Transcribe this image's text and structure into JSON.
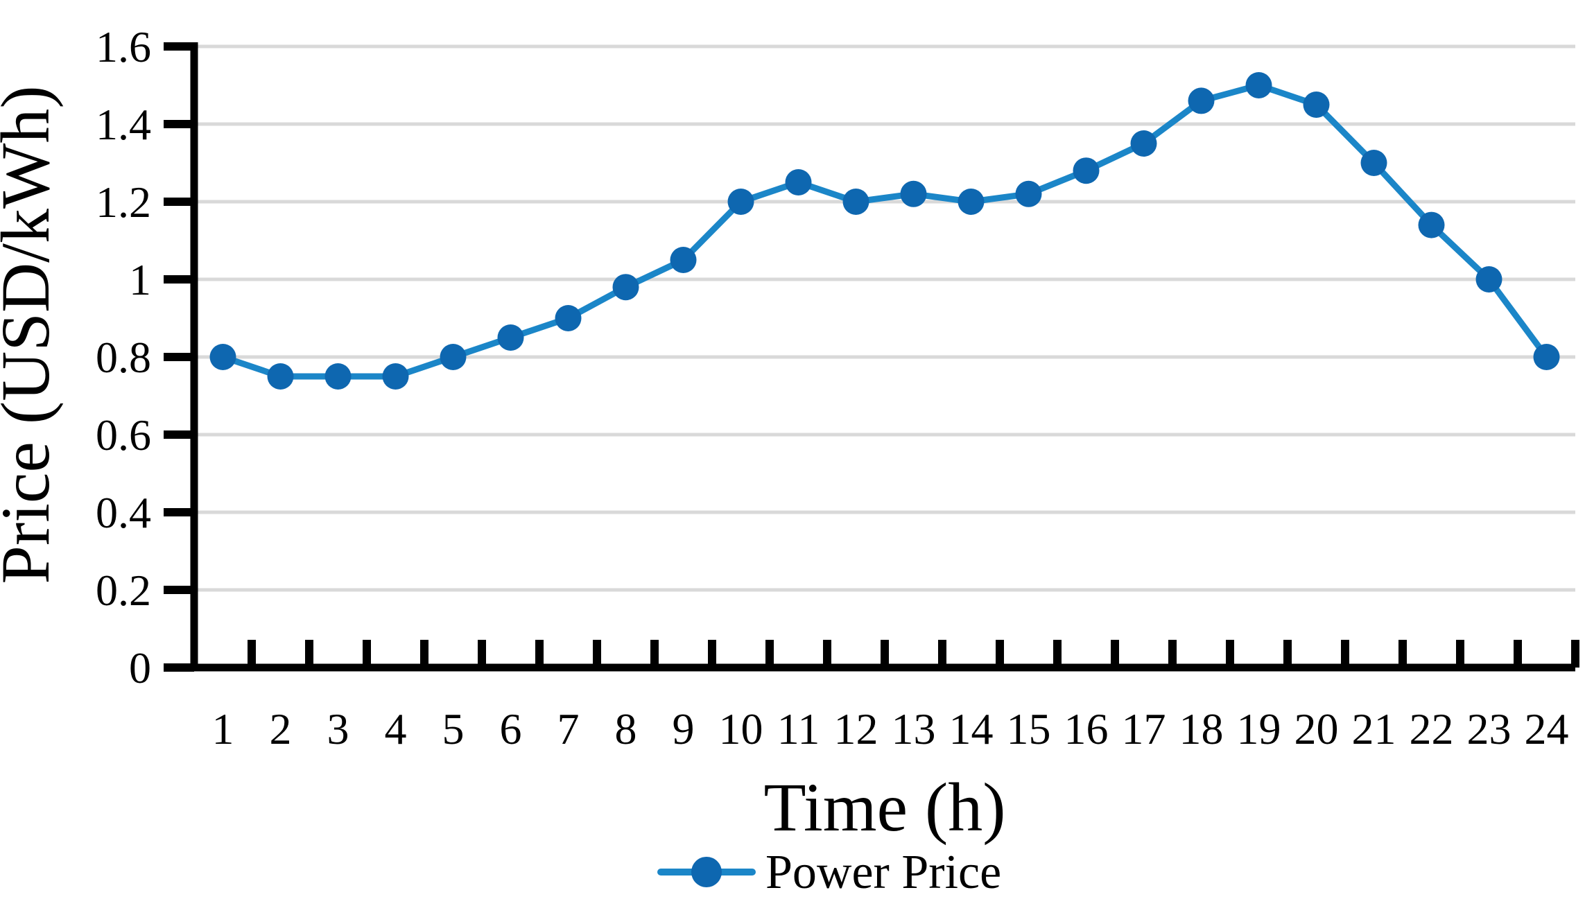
{
  "chart_data": {
    "type": "line",
    "title": "",
    "xlabel": "Time (h)",
    "ylabel": "Price (USD/kWh)",
    "categories": [
      "1",
      "2",
      "3",
      "4",
      "5",
      "6",
      "7",
      "8",
      "9",
      "10",
      "11",
      "12",
      "13",
      "14",
      "15",
      "16",
      "17",
      "18",
      "19",
      "20",
      "21",
      "22",
      "23",
      "24"
    ],
    "series": [
      {
        "name": "Power Price",
        "values": [
          0.8,
          0.75,
          0.75,
          0.75,
          0.8,
          0.85,
          0.9,
          0.98,
          1.05,
          1.2,
          1.25,
          1.2,
          1.22,
          1.2,
          1.22,
          1.28,
          1.35,
          1.46,
          1.5,
          1.45,
          1.3,
          1.14,
          1.0,
          0.8
        ]
      }
    ],
    "ylim": [
      0,
      1.6
    ],
    "yticks": [
      0,
      0.2,
      0.4,
      0.6,
      0.8,
      1.0,
      1.2,
      1.4,
      1.6
    ],
    "ytick_labels": [
      "0",
      "0.2",
      "0.4",
      "0.6",
      "0.8",
      "1",
      "1.2",
      "1.4",
      "1.6"
    ],
    "grid": "horizontal",
    "legend_position": "bottom",
    "colors": {
      "line": "#1B86C8",
      "marker": "#0E67B0",
      "grid": "#D9D9D9",
      "axis": "#000000",
      "text": "#000000"
    }
  }
}
